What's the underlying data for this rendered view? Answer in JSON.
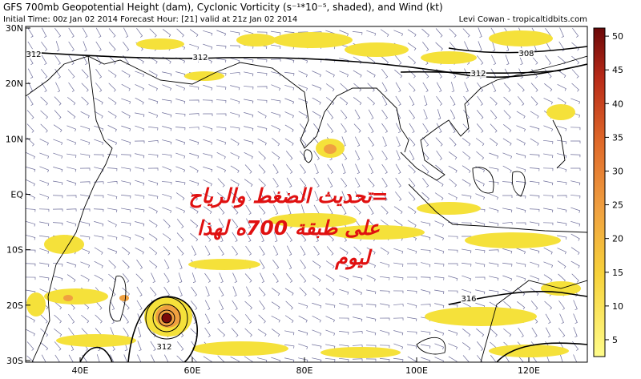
{
  "header": {
    "title": "GFS 700mb Geopotential Height (dam), Cyclonic Vorticity (s⁻¹*10⁻⁵, shaded), and Wind (kt)",
    "subtitle": "Initial Time: 00z Jan 02 2014 Forecast Hour: [21] valid at 21z Jan 02 2014",
    "credit": "Levi Cowan - tropicaltidbits.com"
  },
  "map": {
    "lat_labels": [
      "30N",
      "20N",
      "10N",
      "EQ",
      "10S",
      "20S",
      "30S"
    ],
    "lon_labels": [
      "40E",
      "60E",
      "80E",
      "100E",
      "120E"
    ],
    "contour_labels": [
      "312",
      "312",
      "308",
      "312",
      "316",
      "312"
    ]
  },
  "annotation": {
    "lines": [
      "=تحديث الضغط والرياح",
      "على طبقة 700ه لهذا",
      "ليوم"
    ]
  },
  "colorbar": {
    "lim": [
      2.5,
      51.2
    ],
    "ticks": [
      5,
      10,
      15,
      20,
      25,
      30,
      35,
      40,
      45,
      50
    ]
  }
}
